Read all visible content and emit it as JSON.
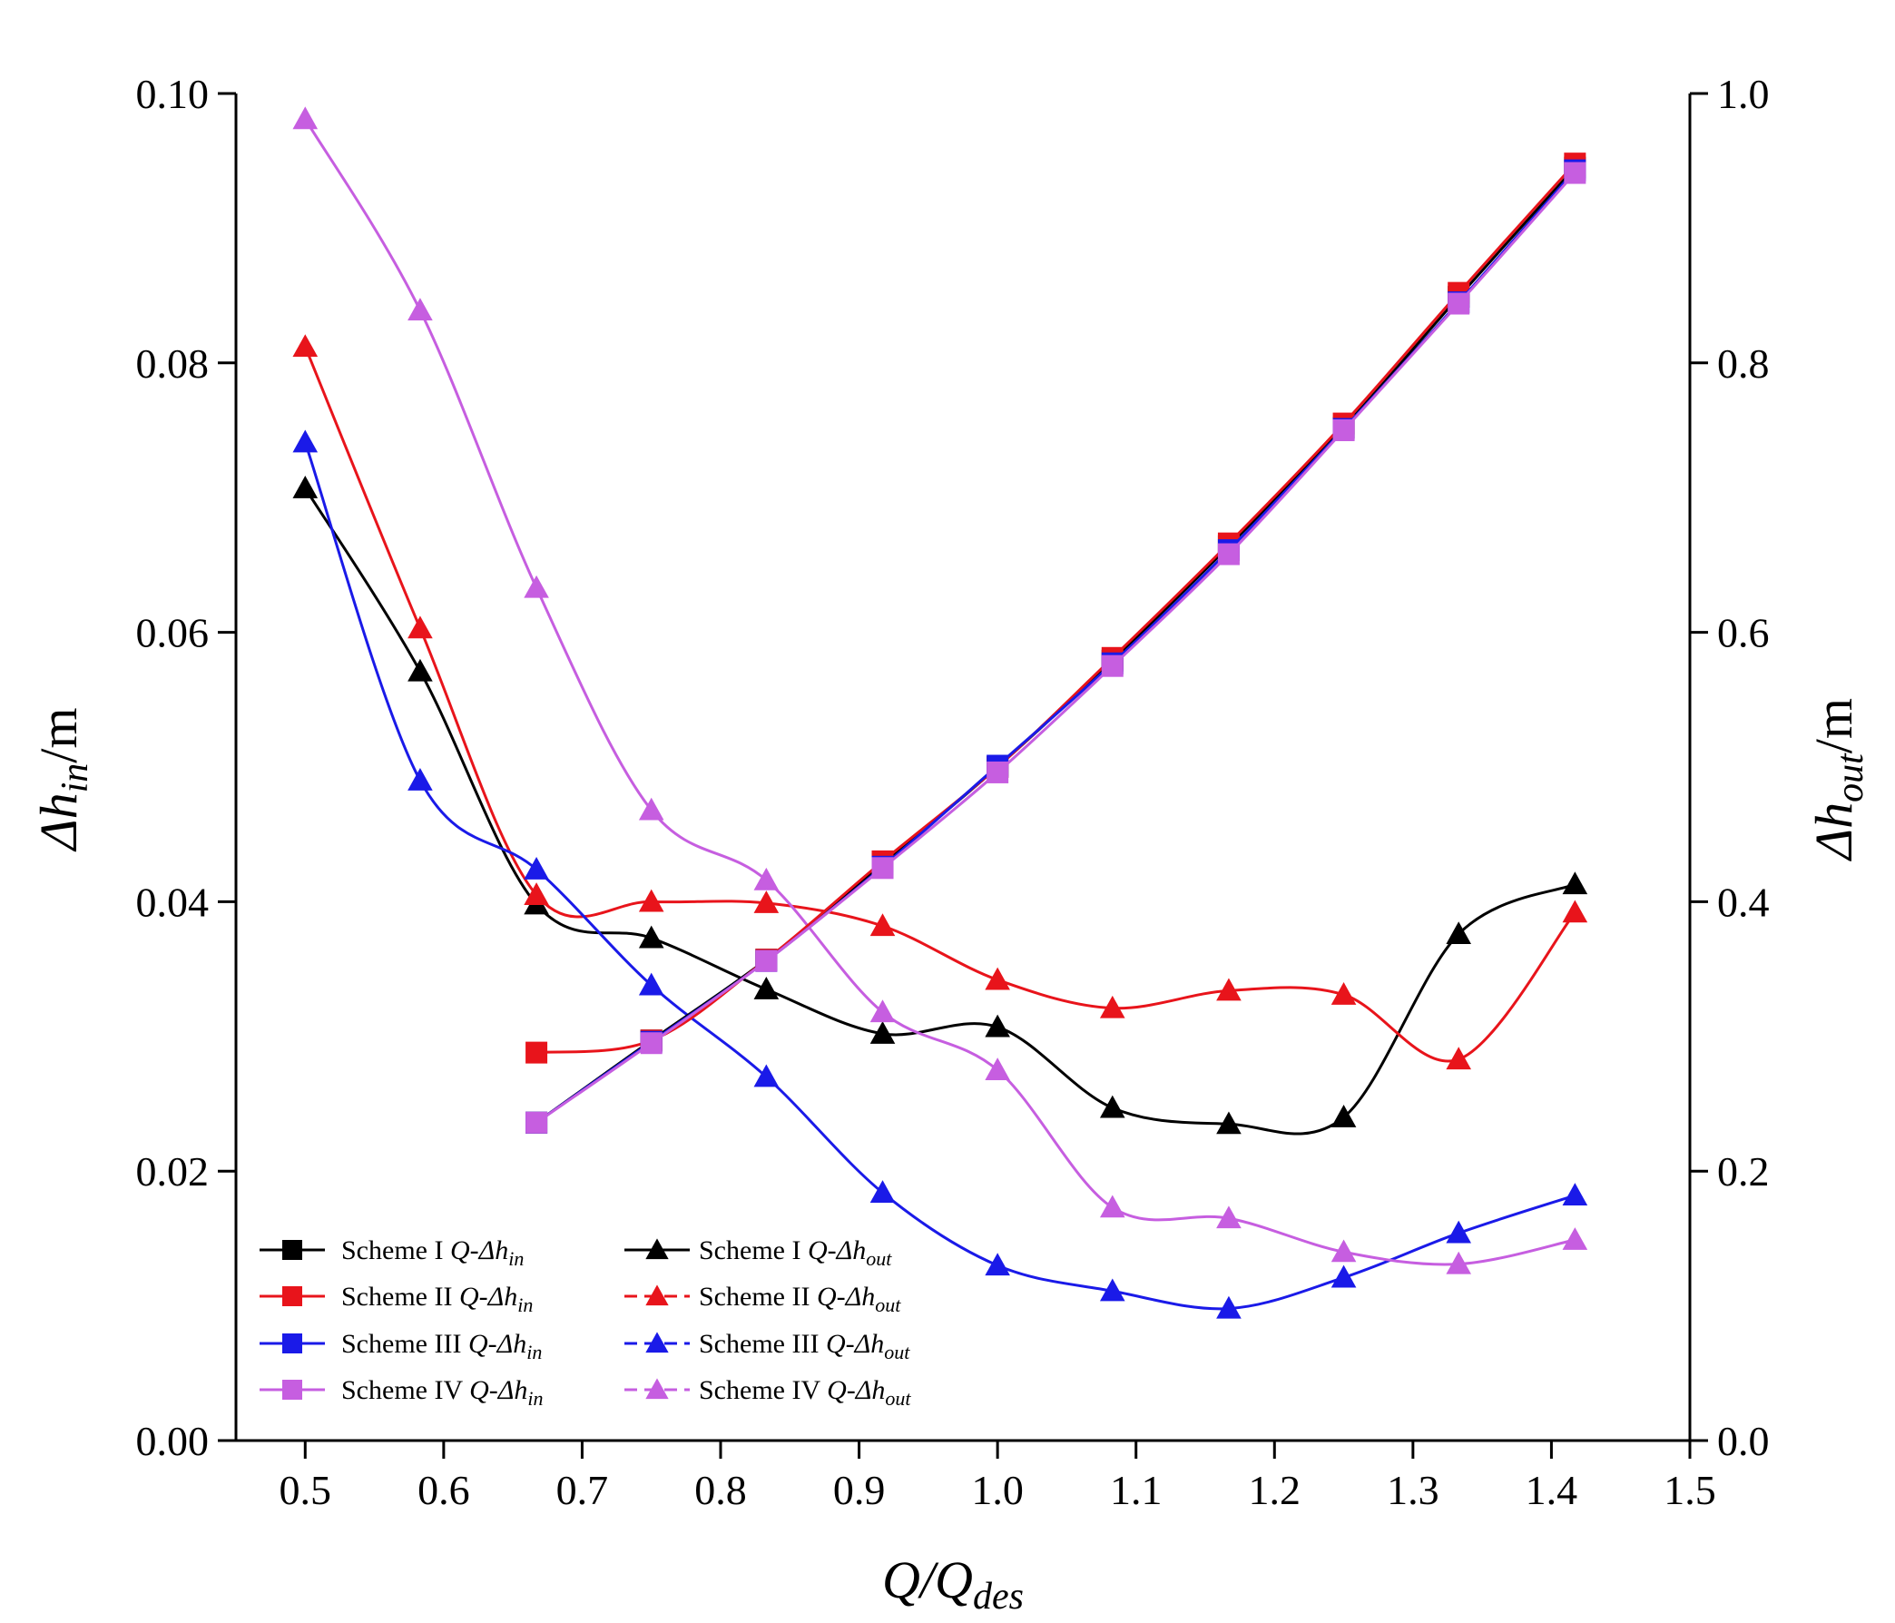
{
  "chart_data": {
    "type": "line",
    "xlabel": {
      "main": "Q/Q",
      "sub": "des"
    },
    "ylabel_left": {
      "prefix": "Δh",
      "sub": "in",
      "suffix": "/m"
    },
    "ylabel_right": {
      "prefix": "Δh",
      "sub": "out",
      "suffix": "/m"
    },
    "xlim": [
      0.45,
      1.5
    ],
    "ylim_left": [
      0,
      0.1
    ],
    "ylim_right": [
      0,
      1.0
    ],
    "xticks": [
      0.5,
      0.6,
      0.7,
      0.8,
      0.9,
      1.0,
      1.1,
      1.2,
      1.3,
      1.4,
      1.5
    ],
    "xtick_labels": [
      "0.5",
      "0.6",
      "0.7",
      "0.8",
      "0.9",
      "1.0",
      "1.1",
      "1.2",
      "1.3",
      "1.4",
      "1.5"
    ],
    "yticks_left": [
      0,
      0.02,
      0.04,
      0.06,
      0.08,
      0.1
    ],
    "ytick_labels_left": [
      "0.00",
      "0.02",
      "0.04",
      "0.06",
      "0.08",
      "0.10"
    ],
    "yticks_right": [
      0,
      0.2,
      0.4,
      0.6,
      0.8,
      1.0
    ],
    "ytick_labels_right": [
      "0.0",
      "0.2",
      "0.4",
      "0.6",
      "0.8",
      "1.0"
    ],
    "series": [
      {
        "name": "Scheme I",
        "quantity": "Q-Δh",
        "sub": "in",
        "axis": "left",
        "marker": "square",
        "dashed": false,
        "color": "#000000",
        "x": [
          0.667,
          0.75,
          0.833,
          0.917,
          1.0,
          1.083,
          1.167,
          1.25,
          1.333,
          1.417
        ],
        "y": [
          0.0236,
          0.0297,
          0.0357,
          0.0428,
          0.05,
          0.0579,
          0.0664,
          0.0752,
          0.0849,
          0.0945
        ]
      },
      {
        "name": "Scheme II",
        "quantity": "Q-Δh",
        "sub": "in",
        "axis": "left",
        "marker": "square",
        "dashed": false,
        "color": "#e8141b",
        "x": [
          0.667,
          0.75,
          0.833,
          0.917,
          1.0,
          1.083,
          1.167,
          1.25,
          1.333,
          1.417
        ],
        "y": [
          0.0288,
          0.0297,
          0.0357,
          0.043,
          0.05,
          0.0581,
          0.0666,
          0.0755,
          0.0852,
          0.0948
        ]
      },
      {
        "name": "Scheme III",
        "quantity": "Q-Δh",
        "sub": "in",
        "axis": "left",
        "marker": "square",
        "dashed": false,
        "color": "#1a1ae8",
        "x": [
          0.667,
          0.75,
          0.833,
          0.917,
          1.0,
          1.083,
          1.167,
          1.25,
          1.333,
          1.417
        ],
        "y": [
          0.0236,
          0.0296,
          0.0356,
          0.0426,
          0.0501,
          0.0577,
          0.0661,
          0.0751,
          0.0845,
          0.0943
        ]
      },
      {
        "name": "Scheme IV",
        "quantity": "Q-Δh",
        "sub": "in",
        "axis": "left",
        "marker": "square",
        "dashed": false,
        "color": "#c65ee0",
        "x": [
          0.667,
          0.75,
          0.833,
          0.917,
          1.0,
          1.083,
          1.167,
          1.25,
          1.333,
          1.417
        ],
        "y": [
          0.0236,
          0.0295,
          0.0356,
          0.0425,
          0.0496,
          0.0575,
          0.0658,
          0.075,
          0.0844,
          0.0941
        ]
      },
      {
        "name": "Scheme I",
        "quantity": "Q-Δh",
        "sub": "out",
        "axis": "right",
        "marker": "triangle",
        "dashed": false,
        "color": "#000000",
        "x": [
          0.5,
          0.583,
          0.667,
          0.75,
          0.833,
          0.917,
          1.0,
          1.083,
          1.167,
          1.25,
          1.333,
          1.417
        ],
        "y": [
          0.707,
          0.571,
          0.398,
          0.373,
          0.335,
          0.302,
          0.307,
          0.247,
          0.235,
          0.24,
          0.376,
          0.413
        ]
      },
      {
        "name": "Scheme II",
        "quantity": "Q-Δh",
        "sub": "out",
        "axis": "right",
        "marker": "triangle",
        "dashed": true,
        "color": "#e8141b",
        "x": [
          0.5,
          0.583,
          0.667,
          0.75,
          0.833,
          0.917,
          1.0,
          1.083,
          1.167,
          1.25,
          1.333,
          1.417
        ],
        "y": [
          0.812,
          0.603,
          0.405,
          0.4,
          0.399,
          0.382,
          0.342,
          0.321,
          0.334,
          0.331,
          0.283,
          0.392
        ]
      },
      {
        "name": "Scheme III",
        "quantity": "Q-Δh",
        "sub": "out",
        "axis": "right",
        "marker": "triangle",
        "dashed": true,
        "color": "#1a1ae8",
        "x": [
          0.5,
          0.583,
          0.667,
          0.75,
          0.833,
          0.917,
          1.0,
          1.083,
          1.167,
          1.25,
          1.333,
          1.417
        ],
        "y": [
          0.741,
          0.49,
          0.424,
          0.338,
          0.27,
          0.184,
          0.13,
          0.111,
          0.098,
          0.121,
          0.154,
          0.182
        ]
      },
      {
        "name": "Scheme IV",
        "quantity": "Q-Δh",
        "sub": "out",
        "axis": "right",
        "marker": "triangle",
        "dashed": true,
        "color": "#c65ee0",
        "x": [
          0.5,
          0.583,
          0.667,
          0.75,
          0.833,
          0.917,
          1.0,
          1.083,
          1.167,
          1.25,
          1.333,
          1.417
        ],
        "y": [
          0.981,
          0.839,
          0.633,
          0.468,
          0.416,
          0.318,
          0.275,
          0.173,
          0.165,
          0.14,
          0.131,
          0.149
        ]
      }
    ]
  }
}
